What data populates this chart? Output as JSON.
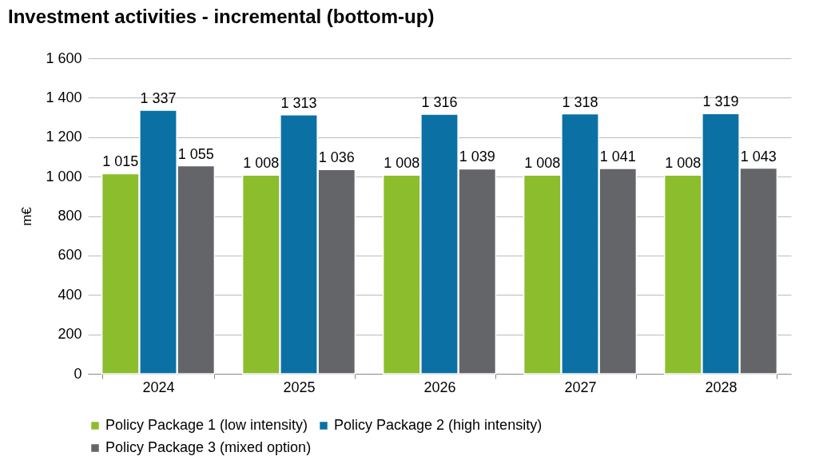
{
  "chart_data": {
    "type": "bar",
    "title": "Investment activities - incremental (bottom-up)",
    "ylabel": "m€",
    "categories": [
      "2024",
      "2025",
      "2026",
      "2027",
      "2028"
    ],
    "series": [
      {
        "name": "Policy Package 1 (low intensity)",
        "color": "#8cbd2d",
        "values": [
          1015,
          1008,
          1008,
          1008,
          1008
        ],
        "value_labels": [
          "1 015",
          "1 008",
          "1 008",
          "1 008",
          "1 008"
        ]
      },
      {
        "name": "Policy Package 2 (high intensity)",
        "color": "#0b71a5",
        "values": [
          1337,
          1313,
          1316,
          1318,
          1319
        ],
        "value_labels": [
          "1 337",
          "1 313",
          "1 316",
          "1 318",
          "1 319"
        ]
      },
      {
        "name": "Policy Package 3 (mixed option)",
        "color": "#636569",
        "values": [
          1055,
          1036,
          1039,
          1041,
          1043
        ],
        "value_labels": [
          "1 055",
          "1 036",
          "1 039",
          "1 041",
          "1 043"
        ]
      }
    ],
    "ylim": [
      0,
      1600
    ],
    "yticks": [
      0,
      200,
      400,
      600,
      800,
      {
        "value": 1000,
        "label": "1 000"
      },
      {
        "value": 1200,
        "label": "1 200"
      },
      {
        "value": 1400,
        "label": "1 400"
      },
      {
        "value": 1600,
        "label": "1 600"
      }
    ],
    "grid": "y",
    "legend": "bottom"
  }
}
